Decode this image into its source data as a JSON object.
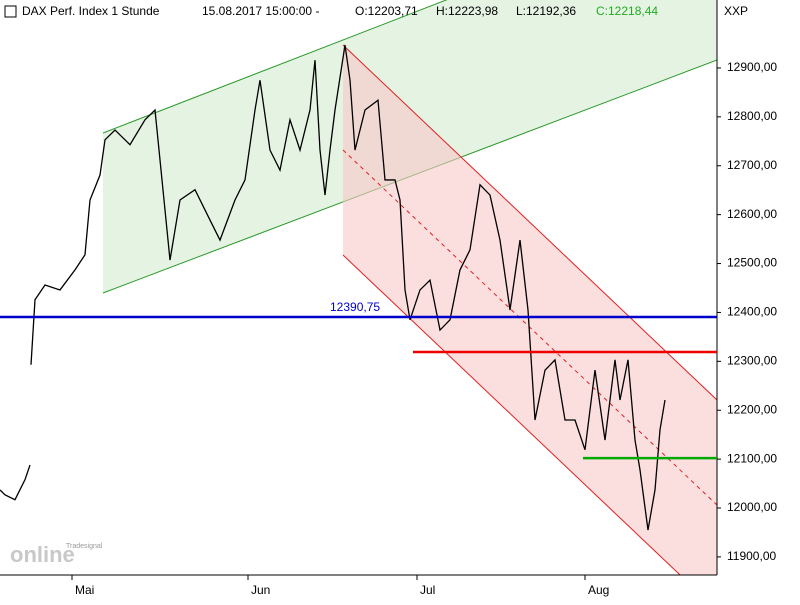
{
  "header": {
    "symbol": "DAX Perf. Index 1 Stunde",
    "timestamp": "15.08.2017 15:00:00 -",
    "open": "O:12203,71",
    "high": "H:12223,98",
    "low": "L:12192,36",
    "close": "C:12218,44",
    "exchange": "XXP"
  },
  "logo": {
    "brand": "Tradesignal",
    "product": "online"
  },
  "chart_data": {
    "type": "line",
    "color": "#000000",
    "x": [
      0,
      5,
      15,
      25,
      30,
      30.5,
      31,
      35,
      45,
      60,
      75,
      85,
      90,
      100,
      105,
      115,
      130,
      145,
      155,
      160,
      170,
      180,
      195,
      210,
      220,
      235,
      245,
      255,
      260,
      270,
      280,
      290,
      300,
      310,
      315,
      320,
      325,
      330,
      335,
      345,
      350,
      355,
      365,
      378,
      385,
      395,
      400,
      405,
      410,
      420,
      430,
      440,
      450,
      460,
      470,
      480,
      490,
      500,
      510,
      520,
      528,
      535,
      545,
      555,
      565,
      575,
      585,
      595,
      605,
      615,
      620,
      628,
      635,
      640,
      648,
      655,
      660,
      665
    ],
    "values": [
      12037,
      12027,
      12017,
      12058,
      12088,
      null,
      12293,
      12426,
      12456,
      12446,
      12487,
      12518,
      12630,
      12681,
      12753,
      12773,
      12743,
      12794,
      12814,
      12712,
      12507,
      12630,
      12651,
      12589,
      12548,
      12630,
      12671,
      12814,
      12875,
      12732,
      12691,
      12794,
      12732,
      12814,
      12916,
      12732,
      12640,
      12732,
      12814,
      12947,
      12875,
      12732,
      12814,
      12834,
      12671,
      12671,
      12630,
      12446,
      12385,
      12446,
      12466,
      12364,
      12385,
      12487,
      12528,
      12661,
      12640,
      12548,
      12405,
      12548,
      12405,
      12180,
      12282,
      12303,
      12180,
      12180,
      12119,
      12282,
      12139,
      12303,
      12221,
      12303,
      12139,
      12078,
      11955,
      12037,
      12160,
      12221
    ],
    "xlim": [
      0,
      717
    ],
    "xticks": [
      {
        "value": 72,
        "label": "Mai"
      },
      {
        "value": 248,
        "label": "Jun"
      },
      {
        "value": 417,
        "label": "Jul"
      },
      {
        "value": 585,
        "label": "Aug"
      }
    ],
    "ylim": [
      11863,
      13039
    ],
    "yticks": [
      {
        "value": 11900,
        "label": "11900,00"
      },
      {
        "value": 12000,
        "label": "12000,00"
      },
      {
        "value": 12100,
        "label": "12100,00"
      },
      {
        "value": 12200,
        "label": "12200,00"
      },
      {
        "value": 12300,
        "label": "12300,00"
      },
      {
        "value": 12400,
        "label": "12400,00"
      },
      {
        "value": 12500,
        "label": "12500,00"
      },
      {
        "value": 12600,
        "label": "12600,00"
      },
      {
        "value": 12700,
        "label": "12700,00"
      },
      {
        "value": 12800,
        "label": "12800,00"
      },
      {
        "value": 12900,
        "label": "12900,00"
      }
    ],
    "hlines": [
      {
        "value": 12390.75,
        "label": "12390,75",
        "color": "#0000cc",
        "from": 0
      },
      {
        "value": 12319,
        "color": "#ee0000",
        "from": 413
      },
      {
        "value": 12102,
        "color": "#00aa00",
        "from": 583
      }
    ]
  }
}
